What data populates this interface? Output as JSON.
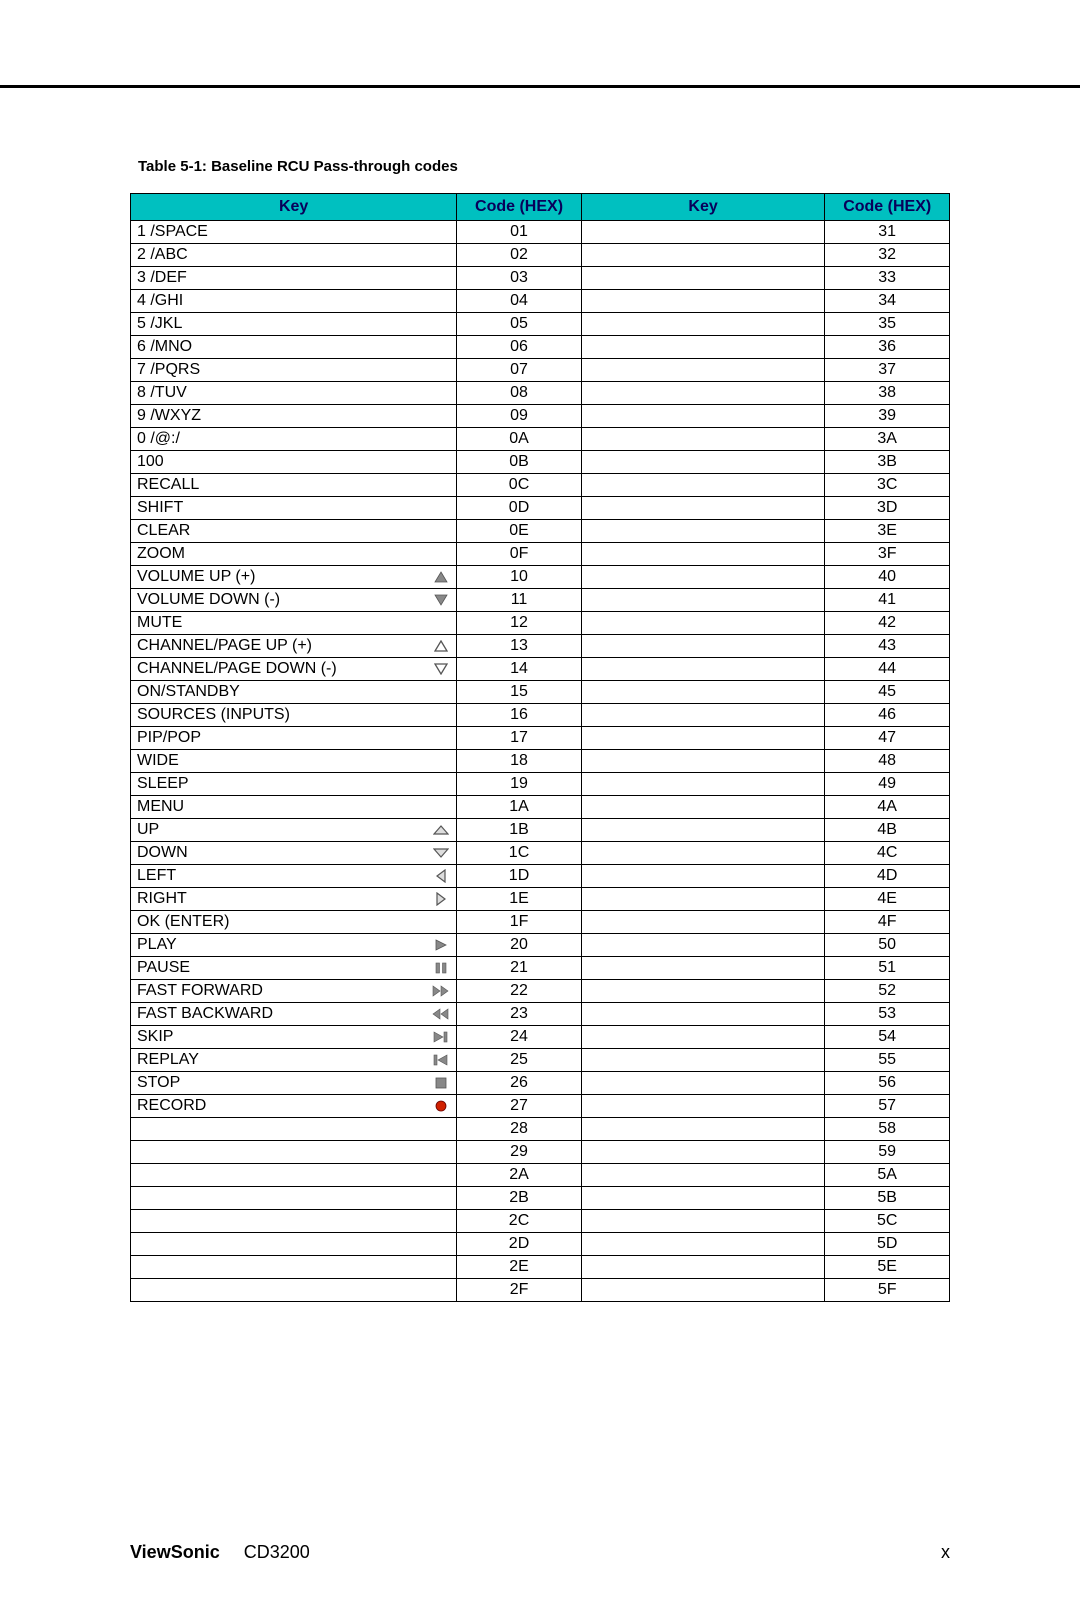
{
  "caption": "Table 5-1: Baseline RCU Pass-through codes",
  "headers": {
    "key": "Key",
    "code": "Code (HEX)",
    "key2": "Key",
    "code2": "Code (HEX)"
  },
  "rows": [
    {
      "key": "1 /SPACE",
      "icon": null,
      "code": "01",
      "key2": "",
      "code2": "31"
    },
    {
      "key": "2 /ABC",
      "icon": null,
      "code": "02",
      "key2": "",
      "code2": "32"
    },
    {
      "key": "3 /DEF",
      "icon": null,
      "code": "03",
      "key2": "",
      "code2": "33"
    },
    {
      "key": "4 /GHI",
      "icon": null,
      "code": "04",
      "key2": "",
      "code2": "34"
    },
    {
      "key": "5 /JKL",
      "icon": null,
      "code": "05",
      "key2": "",
      "code2": "35"
    },
    {
      "key": "6 /MNO",
      "icon": null,
      "code": "06",
      "key2": "",
      "code2": "36"
    },
    {
      "key": "7 /PQRS",
      "icon": null,
      "code": "07",
      "key2": "",
      "code2": "37"
    },
    {
      "key": "8 /TUV",
      "icon": null,
      "code": "08",
      "key2": "",
      "code2": "38"
    },
    {
      "key": "9 /WXYZ",
      "icon": null,
      "code": "09",
      "key2": "",
      "code2": "39"
    },
    {
      "key": "0 /@:/",
      "icon": null,
      "code": "0A",
      "key2": "",
      "code2": "3A"
    },
    {
      "key": "100",
      "icon": null,
      "code": "0B",
      "key2": "",
      "code2": "3B"
    },
    {
      "key": "RECALL",
      "icon": null,
      "code": "0C",
      "key2": "",
      "code2": "3C"
    },
    {
      "key": "SHIFT",
      "icon": null,
      "code": "0D",
      "key2": "",
      "code2": "3D"
    },
    {
      "key": "CLEAR",
      "icon": null,
      "code": "0E",
      "key2": "",
      "code2": "3E"
    },
    {
      "key": "ZOOM",
      "icon": null,
      "code": "0F",
      "key2": "",
      "code2": "3F"
    },
    {
      "key": "VOLUME UP (+)",
      "icon": "vol-up",
      "code": "10",
      "key2": "",
      "code2": "40"
    },
    {
      "key": "VOLUME DOWN (-)",
      "icon": "vol-down",
      "code": "11",
      "key2": "",
      "code2": "41"
    },
    {
      "key": "MUTE",
      "icon": null,
      "code": "12",
      "key2": "",
      "code2": "42"
    },
    {
      "key": "CHANNEL/PAGE UP (+)",
      "icon": "ch-up",
      "code": "13",
      "key2": "",
      "code2": "43"
    },
    {
      "key": "CHANNEL/PAGE DOWN (-)",
      "icon": "ch-down",
      "code": "14",
      "key2": "",
      "code2": "44"
    },
    {
      "key": "ON/STANDBY",
      "icon": null,
      "code": "15",
      "key2": "",
      "code2": "45"
    },
    {
      "key": "SOURCES (INPUTS)",
      "icon": null,
      "code": "16",
      "key2": "",
      "code2": "46"
    },
    {
      "key": "PIP/POP",
      "icon": null,
      "code": "17",
      "key2": "",
      "code2": "47"
    },
    {
      "key": "WIDE",
      "icon": null,
      "code": "18",
      "key2": "",
      "code2": "48"
    },
    {
      "key": "SLEEP",
      "icon": null,
      "code": "19",
      "key2": "",
      "code2": "49"
    },
    {
      "key": "MENU",
      "icon": null,
      "code": "1A",
      "key2": "",
      "code2": "4A"
    },
    {
      "key": "UP",
      "icon": "up",
      "code": "1B",
      "key2": "",
      "code2": "4B"
    },
    {
      "key": "DOWN",
      "icon": "down",
      "code": "1C",
      "key2": "",
      "code2": "4C"
    },
    {
      "key": "LEFT",
      "icon": "left",
      "code": "1D",
      "key2": "",
      "code2": "4D"
    },
    {
      "key": "RIGHT",
      "icon": "right",
      "code": "1E",
      "key2": "",
      "code2": "4E"
    },
    {
      "key": "OK (ENTER)",
      "icon": null,
      "code": "1F",
      "key2": "",
      "code2": "4F"
    },
    {
      "key": "PLAY",
      "icon": "play",
      "code": "20",
      "key2": "",
      "code2": "50"
    },
    {
      "key": "PAUSE",
      "icon": "pause",
      "code": "21",
      "key2": "",
      "code2": "51"
    },
    {
      "key": "FAST FORWARD",
      "icon": "ffwd",
      "code": "22",
      "key2": "",
      "code2": "52"
    },
    {
      "key": "FAST BACKWARD",
      "icon": "fbwd",
      "code": "23",
      "key2": "",
      "code2": "53"
    },
    {
      "key": "SKIP",
      "icon": "skip",
      "code": "24",
      "key2": "",
      "code2": "54"
    },
    {
      "key": "REPLAY",
      "icon": "replay",
      "code": "25",
      "key2": "",
      "code2": "55"
    },
    {
      "key": "STOP",
      "icon": "stop",
      "code": "26",
      "key2": "",
      "code2": "56"
    },
    {
      "key": "RECORD",
      "icon": "record",
      "code": "27",
      "key2": "",
      "code2": "57"
    },
    {
      "key": "",
      "icon": null,
      "code": "28",
      "key2": "",
      "code2": "58"
    },
    {
      "key": "",
      "icon": null,
      "code": "29",
      "key2": "",
      "code2": "59"
    },
    {
      "key": "",
      "icon": null,
      "code": "2A",
      "key2": "",
      "code2": "5A"
    },
    {
      "key": "",
      "icon": null,
      "code": "2B",
      "key2": "",
      "code2": "5B"
    },
    {
      "key": "",
      "icon": null,
      "code": "2C",
      "key2": "",
      "code2": "5C"
    },
    {
      "key": "",
      "icon": null,
      "code": "2D",
      "key2": "",
      "code2": "5D"
    },
    {
      "key": "",
      "icon": null,
      "code": "2E",
      "key2": "",
      "code2": "5E"
    },
    {
      "key": "",
      "icon": null,
      "code": "2F",
      "key2": "",
      "code2": "5F"
    }
  ],
  "footer": {
    "brand": "ViewSonic",
    "model": "CD3200",
    "page": "x"
  },
  "style": {
    "header_bg": "#00c0c0",
    "header_color": "#08005a",
    "border_color": "#000000",
    "icon_fill": "#888888",
    "icon_stroke": "#555555",
    "record_fill": "#d02000",
    "font_size_cell": 16,
    "font_size_caption": 15
  }
}
